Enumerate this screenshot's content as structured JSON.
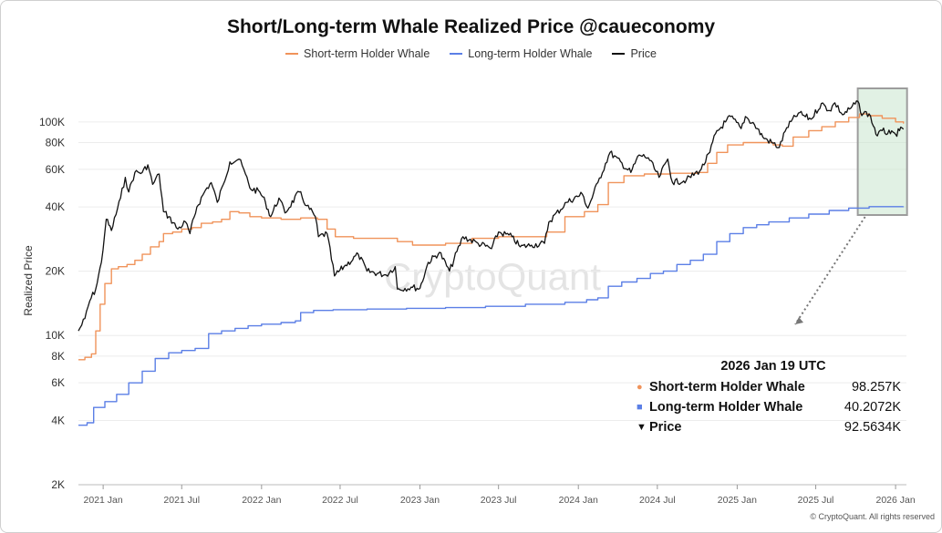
{
  "chart_data": {
    "type": "line",
    "title": "Short/Long-term Whale Realized Price @caueconomy",
    "ylabel": "Realized Price",
    "xlabel": "",
    "yscale": "log",
    "ylim": [
      2000,
      160000
    ],
    "xlim": [
      "2020-11-05",
      "2026-01-26"
    ],
    "y_ticks": [
      {
        "v": 2000,
        "label": "2K"
      },
      {
        "v": 4000,
        "label": "4K"
      },
      {
        "v": 6000,
        "label": "6K"
      },
      {
        "v": 8000,
        "label": "8K"
      },
      {
        "v": 10000,
        "label": "10K"
      },
      {
        "v": 20000,
        "label": "20K"
      },
      {
        "v": 40000,
        "label": "40K"
      },
      {
        "v": 60000,
        "label": "60K"
      },
      {
        "v": 80000,
        "label": "80K"
      },
      {
        "v": 100000,
        "label": "100K"
      }
    ],
    "x_ticks": [
      {
        "d": "2021-01-01",
        "label": "2021 Jan"
      },
      {
        "d": "2021-07-01",
        "label": "2021 Jul"
      },
      {
        "d": "2022-01-01",
        "label": "2022 Jan"
      },
      {
        "d": "2022-07-01",
        "label": "2022 Jul"
      },
      {
        "d": "2023-01-01",
        "label": "2023 Jan"
      },
      {
        "d": "2023-07-01",
        "label": "2023 Jul"
      },
      {
        "d": "2024-01-01",
        "label": "2024 Jan"
      },
      {
        "d": "2024-07-01",
        "label": "2024 Jul"
      },
      {
        "d": "2025-01-01",
        "label": "2025 Jan"
      },
      {
        "d": "2025-07-01",
        "label": "2025 Jul"
      },
      {
        "d": "2026-01-01",
        "label": "2026 Jan"
      }
    ],
    "legend_position": "top-center",
    "grid": {
      "horizontal": true,
      "vertical": false
    },
    "highlight_range": [
      "2025-10-10",
      "2026-01-19"
    ],
    "series": [
      {
        "name": "Short-term Holder Whale",
        "color": "#f0935a",
        "points": [
          [
            "2020-11-05",
            7700
          ],
          [
            "2020-11-20",
            7900
          ],
          [
            "2020-12-05",
            8200
          ],
          [
            "2020-12-15",
            10500
          ],
          [
            "2020-12-25",
            14000
          ],
          [
            "2021-01-05",
            17500
          ],
          [
            "2021-01-20",
            20500
          ],
          [
            "2021-02-05",
            21000
          ],
          [
            "2021-02-25",
            21500
          ],
          [
            "2021-03-15",
            22500
          ],
          [
            "2021-04-01",
            24000
          ],
          [
            "2021-04-20",
            26000
          ],
          [
            "2021-05-10",
            27500
          ],
          [
            "2021-05-20",
            30000
          ],
          [
            "2021-06-10",
            30500
          ],
          [
            "2021-07-01",
            31500
          ],
          [
            "2021-07-25",
            32000
          ],
          [
            "2021-08-15",
            33500
          ],
          [
            "2021-09-10",
            34000
          ],
          [
            "2021-10-01",
            35000
          ],
          [
            "2021-10-20",
            38000
          ],
          [
            "2021-11-10",
            37500
          ],
          [
            "2021-12-05",
            36000
          ],
          [
            "2022-01-01",
            35500
          ],
          [
            "2022-02-15",
            35000
          ],
          [
            "2022-04-01",
            35500
          ],
          [
            "2022-05-10",
            35000
          ],
          [
            "2022-06-01",
            31500
          ],
          [
            "2022-06-20",
            29000
          ],
          [
            "2022-08-01",
            28500
          ],
          [
            "2022-10-01",
            28500
          ],
          [
            "2022-11-10",
            27500
          ],
          [
            "2022-12-15",
            26500
          ],
          [
            "2023-01-15",
            26500
          ],
          [
            "2023-03-01",
            27000
          ],
          [
            "2023-05-01",
            28500
          ],
          [
            "2023-07-01",
            29000
          ],
          [
            "2023-09-01",
            29000
          ],
          [
            "2023-10-20",
            30500
          ],
          [
            "2023-12-01",
            36000
          ],
          [
            "2024-01-15",
            38000
          ],
          [
            "2024-02-15",
            41000
          ],
          [
            "2024-03-10",
            52000
          ],
          [
            "2024-04-15",
            56000
          ],
          [
            "2024-06-01",
            57000
          ],
          [
            "2024-08-01",
            57500
          ],
          [
            "2024-10-01",
            58000
          ],
          [
            "2024-10-25",
            64000
          ],
          [
            "2024-11-15",
            72000
          ],
          [
            "2024-12-10",
            78000
          ],
          [
            "2025-01-15",
            80000
          ],
          [
            "2025-02-20",
            80000
          ],
          [
            "2025-03-25",
            78000
          ],
          [
            "2025-04-15",
            77000
          ],
          [
            "2025-05-10",
            85000
          ],
          [
            "2025-06-15",
            91000
          ],
          [
            "2025-07-15",
            95000
          ],
          [
            "2025-08-15",
            100000
          ],
          [
            "2025-09-15",
            105000
          ],
          [
            "2025-10-10",
            109000
          ],
          [
            "2025-11-01",
            107000
          ],
          [
            "2025-12-01",
            104000
          ],
          [
            "2026-01-01",
            100000
          ],
          [
            "2026-01-19",
            98257
          ]
        ]
      },
      {
        "name": "Long-term Holder Whale",
        "color": "#5b7fe6",
        "points": [
          [
            "2020-11-05",
            3800
          ],
          [
            "2020-11-25",
            3900
          ],
          [
            "2020-12-10",
            4600
          ],
          [
            "2021-01-05",
            4900
          ],
          [
            "2021-02-01",
            5300
          ],
          [
            "2021-03-01",
            6000
          ],
          [
            "2021-04-01",
            6800
          ],
          [
            "2021-05-01",
            7800
          ],
          [
            "2021-06-01",
            8300
          ],
          [
            "2021-07-01",
            8500
          ],
          [
            "2021-08-01",
            8700
          ],
          [
            "2021-09-01",
            10200
          ],
          [
            "2021-10-01",
            10500
          ],
          [
            "2021-11-01",
            10800
          ],
          [
            "2021-12-01",
            11100
          ],
          [
            "2022-01-01",
            11300
          ],
          [
            "2022-02-15",
            11500
          ],
          [
            "2022-03-20",
            11700
          ],
          [
            "2022-04-01",
            12800
          ],
          [
            "2022-05-01",
            13100
          ],
          [
            "2022-06-15",
            13200
          ],
          [
            "2022-09-01",
            13300
          ],
          [
            "2022-12-01",
            13400
          ],
          [
            "2023-03-01",
            13500
          ],
          [
            "2023-06-01",
            13700
          ],
          [
            "2023-09-01",
            14000
          ],
          [
            "2023-12-01",
            14300
          ],
          [
            "2024-01-20",
            14700
          ],
          [
            "2024-02-15",
            15000
          ],
          [
            "2024-03-10",
            17000
          ],
          [
            "2024-04-10",
            17800
          ],
          [
            "2024-05-15",
            18500
          ],
          [
            "2024-06-15",
            19500
          ],
          [
            "2024-07-15",
            20000
          ],
          [
            "2024-08-15",
            21500
          ],
          [
            "2024-09-15",
            22500
          ],
          [
            "2024-10-15",
            24000
          ],
          [
            "2024-11-15",
            27500
          ],
          [
            "2024-12-15",
            30000
          ],
          [
            "2025-01-15",
            32000
          ],
          [
            "2025-02-15",
            33000
          ],
          [
            "2025-03-15",
            34000
          ],
          [
            "2025-05-01",
            35500
          ],
          [
            "2025-06-15",
            37000
          ],
          [
            "2025-08-01",
            38500
          ],
          [
            "2025-09-15",
            39500
          ],
          [
            "2025-11-01",
            40100
          ],
          [
            "2026-01-19",
            40207.2
          ]
        ]
      },
      {
        "name": "Price",
        "color": "#111111",
        "points": [
          [
            "2020-11-05",
            10500
          ],
          [
            "2020-11-20",
            12000
          ],
          [
            "2020-12-01",
            14500
          ],
          [
            "2020-12-15",
            16500
          ],
          [
            "2020-12-28",
            22000
          ],
          [
            "2021-01-08",
            35000
          ],
          [
            "2021-01-20",
            31000
          ],
          [
            "2021-02-10",
            44000
          ],
          [
            "2021-02-21",
            55000
          ],
          [
            "2021-03-01",
            47000
          ],
          [
            "2021-03-15",
            58000
          ],
          [
            "2021-04-01",
            58000
          ],
          [
            "2021-04-14",
            63000
          ],
          [
            "2021-04-25",
            51000
          ],
          [
            "2021-05-10",
            57000
          ],
          [
            "2021-05-20",
            38000
          ],
          [
            "2021-06-01",
            36000
          ],
          [
            "2021-06-22",
            31500
          ],
          [
            "2021-07-10",
            34000
          ],
          [
            "2021-07-20",
            30000
          ],
          [
            "2021-08-05",
            40000
          ],
          [
            "2021-08-25",
            48000
          ],
          [
            "2021-09-07",
            52000
          ],
          [
            "2021-09-21",
            42000
          ],
          [
            "2021-10-05",
            51000
          ],
          [
            "2021-10-20",
            65000
          ],
          [
            "2021-11-10",
            67000
          ],
          [
            "2021-11-25",
            57000
          ],
          [
            "2021-12-05",
            49000
          ],
          [
            "2021-12-28",
            47000
          ],
          [
            "2022-01-10",
            42000
          ],
          [
            "2022-01-22",
            36000
          ],
          [
            "2022-02-10",
            44000
          ],
          [
            "2022-02-24",
            37500
          ],
          [
            "2022-03-29",
            47000
          ],
          [
            "2022-04-15",
            40500
          ],
          [
            "2022-05-05",
            36000
          ],
          [
            "2022-05-12",
            29000
          ],
          [
            "2022-06-01",
            30000
          ],
          [
            "2022-06-18",
            19000
          ],
          [
            "2022-07-10",
            21000
          ],
          [
            "2022-08-12",
            24000
          ],
          [
            "2022-09-01",
            20000
          ],
          [
            "2022-10-15",
            19200
          ],
          [
            "2022-11-05",
            21000
          ],
          [
            "2022-11-10",
            16500
          ],
          [
            "2022-12-15",
            16800
          ],
          [
            "2023-01-01",
            16600
          ],
          [
            "2023-01-20",
            22000
          ],
          [
            "2023-02-15",
            24500
          ],
          [
            "2023-03-10",
            20000
          ],
          [
            "2023-04-10",
            29000
          ],
          [
            "2023-05-15",
            27000
          ],
          [
            "2023-06-15",
            25500
          ],
          [
            "2023-07-01",
            30500
          ],
          [
            "2023-08-01",
            29000
          ],
          [
            "2023-08-20",
            26000
          ],
          [
            "2023-09-15",
            26500
          ],
          [
            "2023-10-15",
            27000
          ],
          [
            "2023-10-25",
            34000
          ],
          [
            "2023-12-05",
            42000
          ],
          [
            "2024-01-10",
            46000
          ],
          [
            "2024-01-23",
            39500
          ],
          [
            "2024-02-15",
            52000
          ],
          [
            "2024-03-14",
            72000
          ],
          [
            "2024-05-01",
            58000
          ],
          [
            "2024-05-20",
            70000
          ],
          [
            "2024-06-10",
            68000
          ],
          [
            "2024-07-05",
            55000
          ],
          [
            "2024-07-25",
            67000
          ],
          [
            "2024-08-05",
            52000
          ],
          [
            "2024-09-06",
            53500
          ],
          [
            "2024-10-10",
            60000
          ],
          [
            "2024-10-30",
            72000
          ],
          [
            "2024-11-12",
            88000
          ],
          [
            "2024-12-05",
            100000
          ],
          [
            "2024-12-17",
            106000
          ],
          [
            "2025-01-10",
            93000
          ],
          [
            "2025-01-20",
            106000
          ],
          [
            "2025-02-10",
            97000
          ],
          [
            "2025-03-01",
            85000
          ],
          [
            "2025-04-08",
            76000
          ],
          [
            "2025-04-25",
            94000
          ],
          [
            "2025-05-22",
            110000
          ],
          [
            "2025-06-20",
            103000
          ],
          [
            "2025-07-14",
            122000
          ],
          [
            "2025-08-02",
            113000
          ],
          [
            "2025-08-14",
            123000
          ],
          [
            "2025-09-01",
            108000
          ],
          [
            "2025-09-20",
            116000
          ],
          [
            "2025-10-06",
            125000
          ],
          [
            "2025-10-12",
            111000
          ],
          [
            "2025-11-01",
            109000
          ],
          [
            "2025-11-20",
            86000
          ],
          [
            "2025-12-01",
            91000
          ],
          [
            "2025-12-20",
            88000
          ],
          [
            "2026-01-01",
            87500
          ],
          [
            "2026-01-10",
            91000
          ],
          [
            "2026-01-19",
            92563.4
          ]
        ]
      }
    ]
  },
  "legend": [
    {
      "label": "Short-term Holder Whale",
      "color": "#f0935a"
    },
    {
      "label": "Long-term Holder Whale",
      "color": "#5b7fe6"
    },
    {
      "label": "Price",
      "color": "#111111"
    }
  ],
  "watermark": "CryptoQuant",
  "tooltip": {
    "date": "2026 Jan 19 UTC",
    "rows": [
      {
        "marker": "●",
        "marker_color": "#f0935a",
        "name": "Short-term Holder Whale",
        "value": "98.257K"
      },
      {
        "marker": "■",
        "marker_color": "#5b7fe6",
        "name": "Long-term Holder Whale",
        "value": "40.2072K"
      },
      {
        "marker": "▼",
        "marker_color": "#111111",
        "name": "Price",
        "value": "92.5634K"
      }
    ]
  },
  "copyright": "© CryptoQuant. All rights reserved"
}
